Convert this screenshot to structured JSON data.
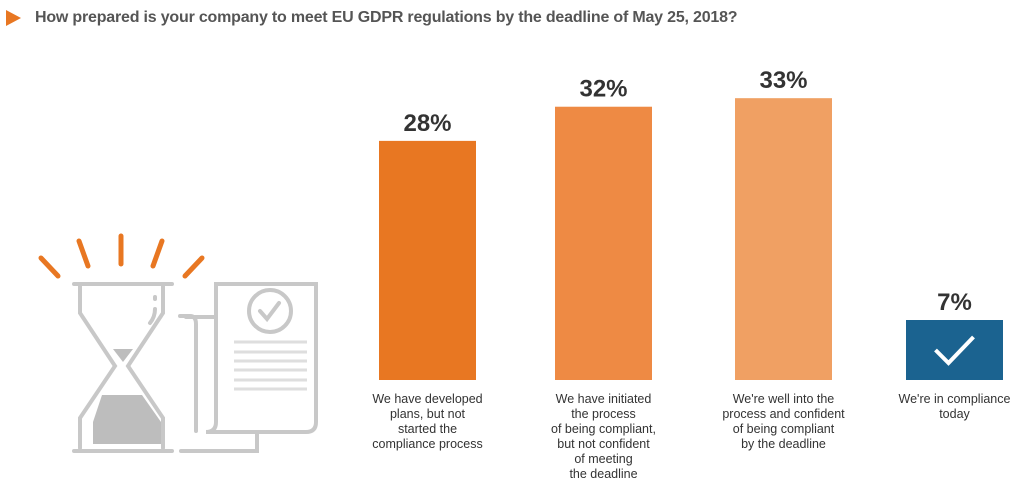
{
  "chart_data": {
    "type": "bar",
    "title": "How prepared is your company to meet EU GDPR regulations by the deadline of May 25, 2018?",
    "categories": [
      "We have developed plans, but not started the compliance process",
      "We have initiated the process of being compliant, but not confident of meeting the deadline",
      "We're well into the process and confident of being compliant by the deadline",
      "We're in compliance today"
    ],
    "category_lines": [
      [
        "We have developed",
        "plans, but not",
        "started the",
        "compliance process"
      ],
      [
        "We have initiated",
        "the process",
        "of being compliant,",
        "but not confident",
        "of meeting",
        "the deadline"
      ],
      [
        "We're well into the",
        "process and confident",
        "of being compliant",
        "by the deadline"
      ],
      [
        "We're in compliance",
        "today"
      ]
    ],
    "values": [
      28,
      32,
      33,
      7
    ],
    "data_labels": [
      "28%",
      "32%",
      "33%",
      "7%"
    ],
    "unit": "%",
    "colors": [
      "#e87722",
      "#ee8a44",
      "#f0a063",
      "#1b6390"
    ],
    "xlabel": "",
    "ylabel": "",
    "ylim": [
      0,
      35
    ],
    "grid": false,
    "legend": "none"
  },
  "decor": {
    "illustration": "hourglass-and-document-icon",
    "checkmark": "checkmark-icon"
  }
}
